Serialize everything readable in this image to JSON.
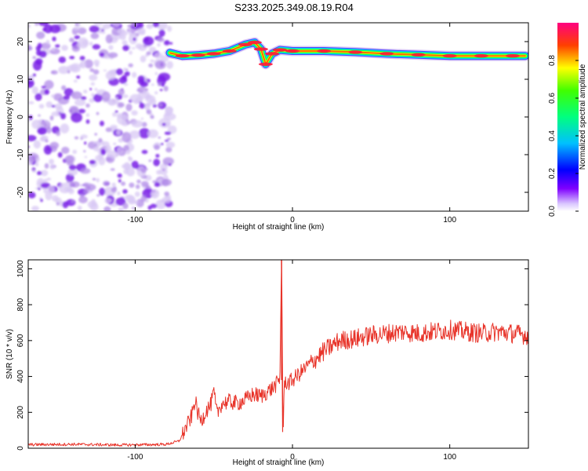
{
  "figure": {
    "title": "S233.2025.349.08.19.R04"
  },
  "chart_data": [
    {
      "type": "heatmap",
      "name": "spectrogram",
      "xlabel": "Height of straight line (km)",
      "ylabel": "Frequency (Hz)",
      "xlim": [
        -168,
        150
      ],
      "ylim": [
        -25,
        25
      ],
      "xticks": [
        -100,
        0,
        100
      ],
      "yticks": [
        -20,
        -10,
        0,
        10,
        20
      ],
      "colorbar": {
        "label": "Normalized spectral amplitude",
        "ticks": [
          0.0,
          0.2,
          0.4,
          0.6,
          0.8
        ],
        "range": [
          0,
          1
        ],
        "colormap": [
          "#ffffff",
          "#7f00ff",
          "#0000ff",
          "#00ffff",
          "#00ff00",
          "#ffff00",
          "#ff0000",
          "#ff0080"
        ]
      },
      "noise_region": {
        "x_range": [
          -168,
          -78
        ],
        "freq_range": [
          -25,
          25
        ],
        "dominant_color": "#7a1fe6"
      },
      "signal_track": {
        "x": [
          -78,
          -70,
          -60,
          -50,
          -40,
          -30,
          -24,
          -20,
          -17,
          -13,
          -8,
          0,
          20,
          40,
          60,
          80,
          100,
          120,
          140,
          148
        ],
        "freq": [
          17,
          16.2,
          16.4,
          16.8,
          17.5,
          19.2,
          19.8,
          18,
          14,
          16.8,
          17.8,
          17.5,
          17.5,
          17.2,
          16.8,
          16.5,
          16.2,
          16.2,
          16.2,
          16.2
        ],
        "peak_amplitude": 0.95
      }
    },
    {
      "type": "line",
      "name": "snr",
      "xlabel": "Height of straight line (km)",
      "ylabel": "SNR (10 * v/v)",
      "xlim": [
        -168,
        150
      ],
      "ylim": [
        0,
        1050
      ],
      "xticks": [
        -100,
        0,
        100
      ],
      "yticks": [
        0,
        200,
        400,
        600,
        800,
        1000
      ],
      "color": "#e8342a",
      "series": [
        {
          "x": [
            -168,
            -140,
            -110,
            -90,
            -80,
            -72,
            -68,
            -64,
            -62,
            -60,
            -58,
            -55,
            -52,
            -50,
            -48,
            -45,
            -40,
            -35,
            -30,
            -25,
            -20,
            -15,
            -12,
            -10,
            -8,
            -7,
            -6,
            -5,
            -3,
            0,
            5,
            10,
            15,
            20,
            25,
            30,
            40,
            50,
            60,
            70,
            80,
            90,
            100,
            110,
            120,
            130,
            140,
            150
          ],
          "y": [
            20,
            22,
            18,
            20,
            22,
            40,
            110,
            180,
            270,
            190,
            150,
            210,
            240,
            310,
            190,
            250,
            260,
            250,
            270,
            300,
            290,
            320,
            340,
            360,
            380,
            1050,
            90,
            380,
            360,
            380,
            420,
            460,
            500,
            540,
            570,
            600,
            610,
            630,
            640,
            650,
            640,
            650,
            660,
            650,
            640,
            650,
            640,
            630
          ]
        }
      ]
    }
  ]
}
